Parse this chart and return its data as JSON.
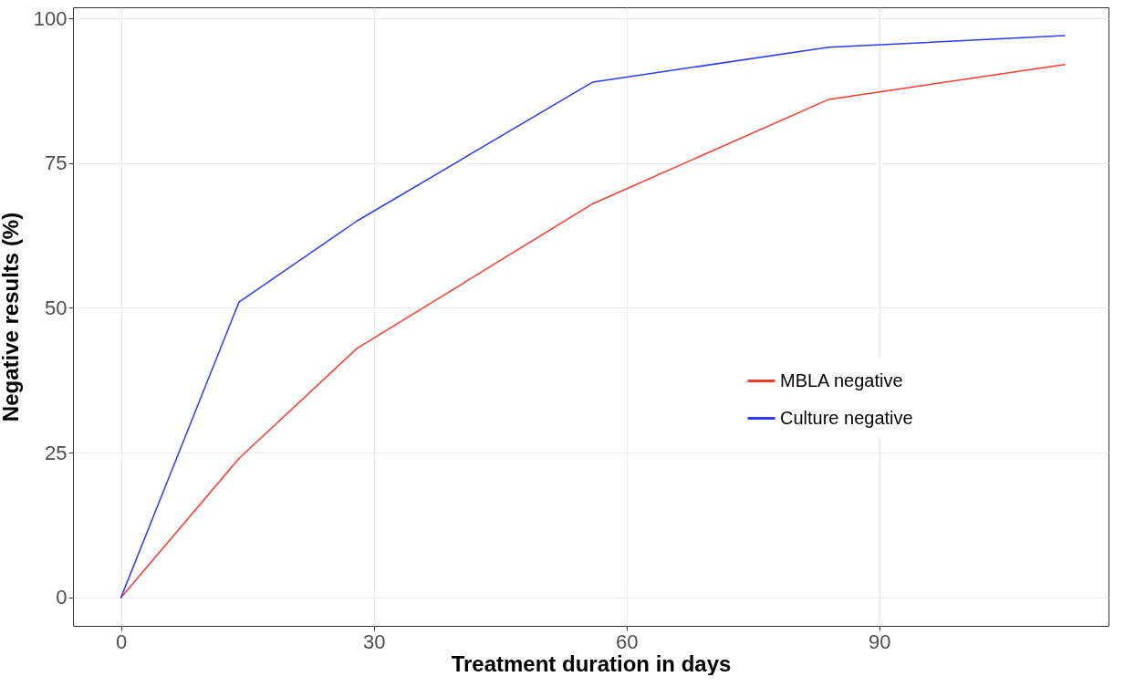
{
  "chart_data": {
    "type": "line",
    "xlabel": "Treatment duration in days",
    "ylabel": "Negative results (%)",
    "x": [
      0,
      14,
      28,
      56,
      84,
      112
    ],
    "series": [
      {
        "name": "MBLA negative",
        "color": "#ff3b2f",
        "values": [
          0,
          24,
          43,
          68,
          86,
          92
        ]
      },
      {
        "name": "Culture negative",
        "color": "#2b3bff",
        "values": [
          0,
          51,
          65,
          89,
          95,
          97
        ]
      }
    ],
    "xlim": [
      -5.7,
      117.2
    ],
    "xticks": [
      0,
      30,
      60,
      90
    ],
    "ylim": [
      -4.9,
      101.9
    ],
    "yticks": [
      0,
      25,
      50,
      75,
      100
    ],
    "grid": true,
    "legend": "right",
    "marker": "none",
    "line_style": "solid"
  }
}
